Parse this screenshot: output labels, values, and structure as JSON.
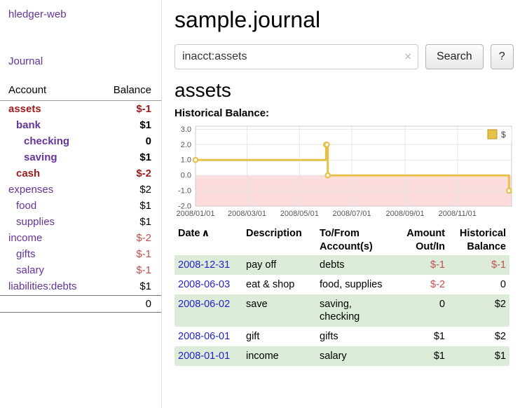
{
  "colors": {
    "purple": "#663399",
    "dark_red": "#9d1c1c",
    "light_red": "#c05050",
    "link_blue": "#2222cc",
    "row_green": "#dcecd8",
    "chart_line": "#e6c14a",
    "chart_line_border": "#bd971f",
    "chart_negative_bg": "#fcdcdc"
  },
  "sidebar": {
    "app_title": "hledger-web",
    "nav_journal": "Journal",
    "accounts_header": {
      "account": "Account",
      "balance": "Balance"
    },
    "accounts": [
      {
        "name": "assets",
        "balance": "$-1",
        "level": 0,
        "bold": true,
        "name_color": "dark_red",
        "balance_color": "dark_red"
      },
      {
        "name": "bank",
        "balance": "$1",
        "level": 1,
        "bold": true,
        "name_color": "purple",
        "balance_color": "black"
      },
      {
        "name": "checking",
        "balance": "0",
        "level": 2,
        "bold": true,
        "name_color": "purple",
        "balance_color": "black"
      },
      {
        "name": "saving",
        "balance": "$1",
        "level": 2,
        "bold": true,
        "name_color": "purple",
        "balance_color": "black"
      },
      {
        "name": "cash",
        "balance": "$-2",
        "level": 1,
        "bold": true,
        "name_color": "dark_red",
        "balance_color": "dark_red"
      },
      {
        "name": "expenses",
        "balance": "$2",
        "level": 0,
        "bold": false,
        "name_color": "purple",
        "balance_color": "black"
      },
      {
        "name": "food",
        "balance": "$1",
        "level": 1,
        "bold": false,
        "name_color": "purple",
        "balance_color": "black"
      },
      {
        "name": "supplies",
        "balance": "$1",
        "level": 1,
        "bold": false,
        "name_color": "purple",
        "balance_color": "black"
      },
      {
        "name": "income",
        "balance": "$-2",
        "level": 0,
        "bold": false,
        "name_color": "purple",
        "balance_color": "light_red"
      },
      {
        "name": "gifts",
        "balance": "$-1",
        "level": 1,
        "bold": false,
        "name_color": "purple",
        "balance_color": "light_red"
      },
      {
        "name": "salary",
        "balance": "$-1",
        "level": 1,
        "bold": false,
        "name_color": "purple",
        "balance_color": "light_red"
      },
      {
        "name": "liabilities:debts",
        "balance": "$1",
        "level": 0,
        "bold": false,
        "name_color": "purple",
        "balance_color": "black"
      }
    ],
    "total": "0"
  },
  "header": {
    "title": "sample.journal"
  },
  "search": {
    "value": "inacct:assets",
    "clear_icon": "✕",
    "button_label": "Search",
    "help_label": "?"
  },
  "main": {
    "account_heading": "assets",
    "chart_label": "Historical Balance:"
  },
  "chart_data": {
    "type": "line",
    "step": true,
    "title": "Historical Balance:",
    "legend": [
      {
        "label": "$"
      }
    ],
    "legend_position": "top-right",
    "grid": true,
    "xlim": [
      0,
      368
    ],
    "ylim": [
      -2.0,
      3.2
    ],
    "yticks": [
      "3.0",
      "2.0",
      "1.0",
      "0.0",
      "-1.0",
      "-2.0"
    ],
    "ytick_values": [
      3,
      2,
      1,
      0,
      -1,
      -2
    ],
    "xticks": [
      {
        "x": 0,
        "label": "2008/01/01"
      },
      {
        "x": 60,
        "label": "2008/03/01"
      },
      {
        "x": 121,
        "label": "2008/05/01"
      },
      {
        "x": 182,
        "label": "2008/07/01"
      },
      {
        "x": 244,
        "label": "2008/09/01"
      },
      {
        "x": 305,
        "label": "2008/11/01"
      }
    ],
    "series": [
      {
        "name": "$",
        "points": [
          {
            "date": "2008-01-01",
            "x": 0,
            "y": 1
          },
          {
            "date": "2008-06-01",
            "x": 152,
            "y": 2
          },
          {
            "date": "2008-06-02",
            "x": 153,
            "y": 2
          },
          {
            "date": "2008-06-03",
            "x": 154,
            "y": 0
          },
          {
            "date": "2008-12-31",
            "x": 365,
            "y": -1
          }
        ]
      }
    ]
  },
  "register": {
    "sort_indicator": "∧",
    "columns": [
      {
        "label": "Date"
      },
      {
        "label": "Description"
      },
      {
        "label": "To/From Account(s)"
      },
      {
        "label": "Amount Out/In"
      },
      {
        "label": "Historical Balance"
      }
    ],
    "rows": [
      {
        "date": "2008-12-31",
        "description": "pay off",
        "accounts": "debts",
        "amount": "$-1",
        "amount_neg": true,
        "balance": "$-1",
        "balance_neg": true
      },
      {
        "date": "2008-06-03",
        "description": "eat & shop",
        "accounts": "food, supplies",
        "amount": "$-2",
        "amount_neg": true,
        "balance": "0",
        "balance_neg": false
      },
      {
        "date": "2008-06-02",
        "description": "save",
        "accounts": "saving, checking",
        "amount": "0",
        "amount_neg": false,
        "balance": "$2",
        "balance_neg": false
      },
      {
        "date": "2008-06-01",
        "description": "gift",
        "accounts": "gifts",
        "amount": "$1",
        "amount_neg": false,
        "balance": "$2",
        "balance_neg": false
      },
      {
        "date": "2008-01-01",
        "description": "income",
        "accounts": "salary",
        "amount": "$1",
        "amount_neg": false,
        "balance": "$1",
        "balance_neg": false
      }
    ]
  }
}
